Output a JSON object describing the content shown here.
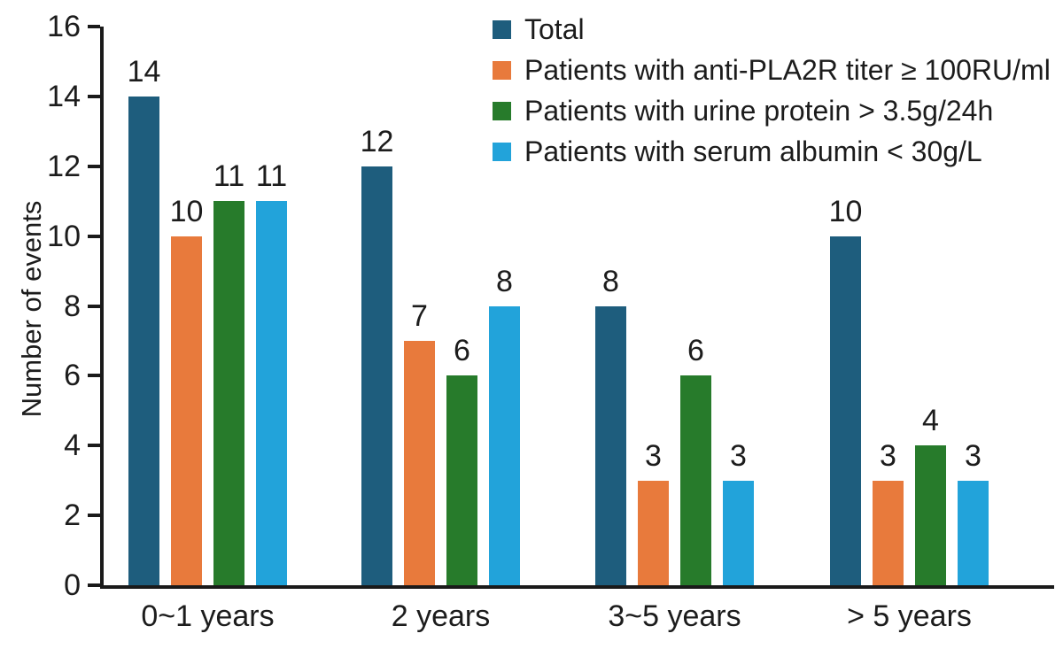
{
  "chart_data": {
    "type": "bar",
    "ylabel": "Number of events",
    "xlabel": "",
    "ylim": [
      0,
      16
    ],
    "yticks": [
      0,
      2,
      4,
      6,
      8,
      10,
      12,
      14,
      16
    ],
    "grid": false,
    "legend_position": "top-right",
    "bar_value_labels": true,
    "axis_color": "#1a1a1a",
    "text_color": "#1c1c1c",
    "categories": [
      "0~1 years",
      "2 years",
      "3~5 years",
      "> 5 years"
    ],
    "series": [
      {
        "name": "Total",
        "color": "#1e5d7d",
        "values": [
          14,
          12,
          8,
          10
        ]
      },
      {
        "name": "Patients with anti-PLA2R titer ≥ 100RU/ml",
        "color": "#e87a3c",
        "values": [
          10,
          7,
          3,
          3
        ]
      },
      {
        "name": "Patients with urine protein > 3.5g/24h",
        "color": "#277b2b",
        "values": [
          11,
          6,
          6,
          4
        ]
      },
      {
        "name": "Patients with serum albumin < 30g/L",
        "color": "#22a3da",
        "values": [
          11,
          8,
          3,
          3
        ]
      }
    ]
  }
}
